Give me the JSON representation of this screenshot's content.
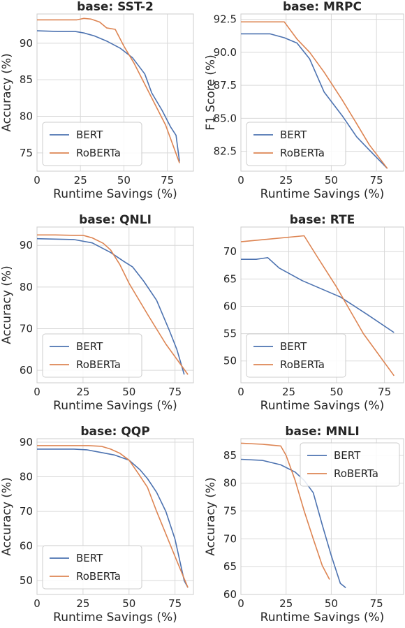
{
  "chart_data": [
    {
      "type": "line",
      "title": "base: SST-2",
      "xlabel": "Runtime Savings (%)",
      "ylabel": "Accuracy (%)",
      "xlim": [
        0,
        90
      ],
      "ylim": [
        72.5,
        94
      ],
      "xticks": [
        0,
        25,
        50,
        75
      ],
      "yticks": [
        75,
        80,
        85,
        90
      ],
      "grid": true,
      "legend_position": "lower left",
      "series": [
        {
          "name": "BERT",
          "color": "#4c72b0",
          "points": [
            [
              0,
              91.7
            ],
            [
              12,
              91.6
            ],
            [
              22,
              91.6
            ],
            [
              27,
              91.4
            ],
            [
              33,
              91.0
            ],
            [
              40,
              90.3
            ],
            [
              48,
              89.3
            ],
            [
              55,
              88.0
            ],
            [
              62,
              85.8
            ],
            [
              66,
              83.2
            ],
            [
              72,
              80.8
            ],
            [
              77,
              78.5
            ],
            [
              80,
              77.4
            ],
            [
              82,
              73.8
            ]
          ]
        },
        {
          "name": "RoBERTa",
          "color": "#dd8452",
          "points": [
            [
              0,
              93.2
            ],
            [
              12,
              93.2
            ],
            [
              23,
              93.2
            ],
            [
              27,
              93.4
            ],
            [
              31,
              93.3
            ],
            [
              36,
              92.9
            ],
            [
              40,
              92.1
            ],
            [
              45,
              91.9
            ],
            [
              50,
              89.6
            ],
            [
              56,
              87.2
            ],
            [
              62,
              84.4
            ],
            [
              68,
              81.6
            ],
            [
              74,
              78.8
            ],
            [
              82,
              73.6
            ]
          ]
        }
      ]
    },
    {
      "type": "line",
      "title": "base: MRPC",
      "xlabel": "Runtime Savings (%)",
      "ylabel": "F1 Score (%)",
      "xlim": [
        0,
        90
      ],
      "ylim": [
        81.0,
        92.9
      ],
      "xticks": [
        0,
        25,
        50,
        75
      ],
      "yticks": [
        82.5,
        85.0,
        87.5,
        90.0,
        92.5
      ],
      "grid": true,
      "legend_position": "lower left",
      "series": [
        {
          "name": "BERT",
          "color": "#4c72b0",
          "points": [
            [
              0,
              91.4
            ],
            [
              8,
              91.4
            ],
            [
              16,
              91.4
            ],
            [
              24,
              91.1
            ],
            [
              31,
              90.7
            ],
            [
              38,
              89.5
            ],
            [
              46,
              87.0
            ],
            [
              56,
              85.2
            ],
            [
              64,
              83.6
            ],
            [
              71,
              82.6
            ],
            [
              81,
              81.2
            ]
          ]
        },
        {
          "name": "RoBERTa",
          "color": "#dd8452",
          "points": [
            [
              0,
              92.3
            ],
            [
              8,
              92.3
            ],
            [
              16,
              92.3
            ],
            [
              24,
              92.3
            ],
            [
              31,
              91.0
            ],
            [
              38,
              90.0
            ],
            [
              46,
              88.5
            ],
            [
              56,
              86.4
            ],
            [
              64,
              84.6
            ],
            [
              71,
              83.0
            ],
            [
              81,
              81.2
            ]
          ]
        }
      ]
    },
    {
      "type": "line",
      "title": "base: QNLI",
      "xlabel": "Runtime Savings (%)",
      "ylabel": "Accuracy (%)",
      "xlim": [
        0,
        85
      ],
      "ylim": [
        57,
        94.4
      ],
      "xticks": [
        0,
        25,
        50,
        75
      ],
      "yticks": [
        60,
        70,
        80,
        90
      ],
      "grid": true,
      "legend_position": "lower left",
      "series": [
        {
          "name": "BERT",
          "color": "#4c72b0",
          "points": [
            [
              0,
              91.6
            ],
            [
              10,
              91.5
            ],
            [
              20,
              91.4
            ],
            [
              30,
              90.6
            ],
            [
              40,
              88.3
            ],
            [
              47,
              86.2
            ],
            [
              52,
              84.8
            ],
            [
              58,
              81.4
            ],
            [
              65,
              76.8
            ],
            [
              72,
              69.5
            ],
            [
              76,
              65.0
            ],
            [
              80,
              59.0
            ]
          ]
        },
        {
          "name": "RoBERTa",
          "color": "#dd8452",
          "points": [
            [
              0,
              92.5
            ],
            [
              10,
              92.5
            ],
            [
              20,
              92.4
            ],
            [
              25,
              92.4
            ],
            [
              30,
              91.8
            ],
            [
              36,
              90.5
            ],
            [
              40,
              88.9
            ],
            [
              45,
              85.4
            ],
            [
              50,
              80.9
            ],
            [
              60,
              73.5
            ],
            [
              70,
              66.3
            ],
            [
              82,
              59.0
            ]
          ]
        }
      ]
    },
    {
      "type": "line",
      "title": "base: RTE",
      "xlabel": "Runtime Savings (%)",
      "ylabel": "",
      "xlim": [
        0,
        85
      ],
      "ylim": [
        46,
        74.5
      ],
      "xticks": [
        0,
        25,
        50,
        75
      ],
      "yticks": [
        50,
        55,
        60,
        65,
        70
      ],
      "grid": true,
      "legend_position": "lower left",
      "series": [
        {
          "name": "BERT",
          "color": "#4c72b0",
          "points": [
            [
              0,
              68.6
            ],
            [
              8,
              68.6
            ],
            [
              14,
              68.9
            ],
            [
              20,
              67.0
            ],
            [
              32,
              64.7
            ],
            [
              52,
              61.7
            ],
            [
              66,
              58.5
            ],
            [
              80,
              55.2
            ]
          ]
        },
        {
          "name": "RoBERTa",
          "color": "#dd8452",
          "points": [
            [
              0,
              71.8
            ],
            [
              33,
              72.9
            ],
            [
              40,
              69.0
            ],
            [
              50,
              63.5
            ],
            [
              64,
              55.0
            ],
            [
              80,
              47.3
            ]
          ]
        }
      ]
    },
    {
      "type": "line",
      "title": "base: QQP",
      "xlabel": "Runtime Savings (%)",
      "ylabel": "Accuracy (%)",
      "xlim": [
        0,
        85
      ],
      "ylim": [
        46,
        91
      ],
      "xticks": [
        0,
        25,
        50,
        75
      ],
      "yticks": [
        50,
        60,
        70,
        80,
        90
      ],
      "grid": true,
      "legend_position": "lower left",
      "series": [
        {
          "name": "BERT",
          "color": "#4c72b0",
          "points": [
            [
              0,
              88.0
            ],
            [
              10,
              88.0
            ],
            [
              20,
              88.0
            ],
            [
              27,
              87.8
            ],
            [
              35,
              87.0
            ],
            [
              42,
              86.3
            ],
            [
              50,
              84.8
            ],
            [
              56,
              82.0
            ],
            [
              60,
              79.5
            ],
            [
              65,
              75.5
            ],
            [
              70,
              70.0
            ],
            [
              75,
              62.0
            ],
            [
              80,
              50.0
            ],
            [
              82,
              48.0
            ]
          ]
        },
        {
          "name": "RoBERTa",
          "color": "#dd8452",
          "points": [
            [
              0,
              89.0
            ],
            [
              10,
              89.0
            ],
            [
              20,
              89.0
            ],
            [
              28,
              89.0
            ],
            [
              35,
              88.8
            ],
            [
              40,
              88.0
            ],
            [
              45,
              86.8
            ],
            [
              50,
              84.8
            ],
            [
              55,
              81.0
            ],
            [
              60,
              77.0
            ],
            [
              65,
              70.0
            ],
            [
              70,
              63.5
            ],
            [
              75,
              57.0
            ],
            [
              82,
              48.0
            ]
          ]
        }
      ]
    },
    {
      "type": "line",
      "title": "base: MNLI",
      "xlabel": "Runtime Savings (%)",
      "ylabel": "Accuracy (%)",
      "xlim": [
        0,
        90
      ],
      "ylim": [
        60,
        88
      ],
      "xticks": [
        0,
        25,
        50,
        75
      ],
      "yticks": [
        60,
        65,
        70,
        75,
        80,
        85
      ],
      "grid": true,
      "legend_position": "upper right",
      "series": [
        {
          "name": "BERT",
          "color": "#4c72b0",
          "points": [
            [
              0,
              84.3
            ],
            [
              12,
              84.1
            ],
            [
              22,
              83.3
            ],
            [
              30,
              82.0
            ],
            [
              35,
              80.5
            ],
            [
              40,
              78.3
            ],
            [
              45,
              72.5
            ],
            [
              50,
              67.0
            ],
            [
              55,
              62.0
            ],
            [
              58,
              61.2
            ]
          ]
        },
        {
          "name": "RoBERTa",
          "color": "#dd8452",
          "points": [
            [
              0,
              87.2
            ],
            [
              12,
              87.0
            ],
            [
              22,
              86.7
            ],
            [
              25,
              85.0
            ],
            [
              30,
              80.5
            ],
            [
              35,
              75.0
            ],
            [
              40,
              70.0
            ],
            [
              45,
              65.2
            ],
            [
              49,
              62.7
            ]
          ]
        }
      ]
    }
  ]
}
